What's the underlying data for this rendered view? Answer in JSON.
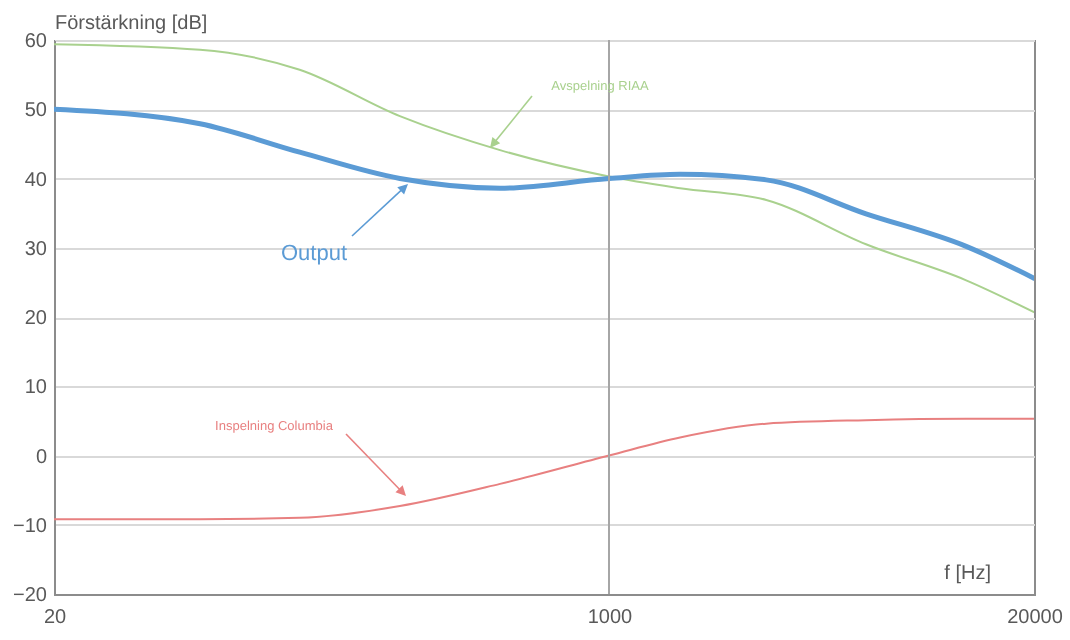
{
  "chart_data": {
    "type": "line",
    "xlabel": "f [Hz]",
    "ylabel": "Förstärkning [dB]",
    "x": [
      20,
      56,
      113,
      229,
      464,
      1000,
      1650,
      3030,
      6120,
      12400,
      20000
    ],
    "series": [
      {
        "name": "Avspelning RIAA",
        "color": "#a9d18e",
        "values": [
          59.4,
          58.6,
          55.7,
          49,
          44.1,
          40.3,
          38.6,
          36.9,
          30.5,
          25.3,
          20.7
        ]
      },
      {
        "name": "Output",
        "color": "#5b9bd5",
        "values": [
          50,
          47.9,
          43.8,
          40,
          38.6,
          40,
          40.6,
          39.8,
          34.9,
          30.2,
          25.6
        ]
      },
      {
        "name": "Inspelning Columbia",
        "color": "#e88080",
        "values": [
          -9.2,
          -9.2,
          -9,
          -7.3,
          -4.1,
          0,
          2.6,
          4.6,
          5.1,
          5.3,
          5.3
        ]
      }
    ],
    "log": "x",
    "xlim": [
      20,
      20000
    ],
    "xticks": [
      20,
      1000,
      20000
    ],
    "ylim": [
      -20,
      60
    ],
    "yticks": [
      -20,
      -10,
      0,
      10,
      20,
      30,
      40,
      50,
      60
    ],
    "ref_lines": [
      {
        "axis": "x",
        "value": 1000,
        "color": "#a6a6a6"
      }
    ],
    "grid": "y",
    "marker": "none",
    "line_style": "solid"
  }
}
